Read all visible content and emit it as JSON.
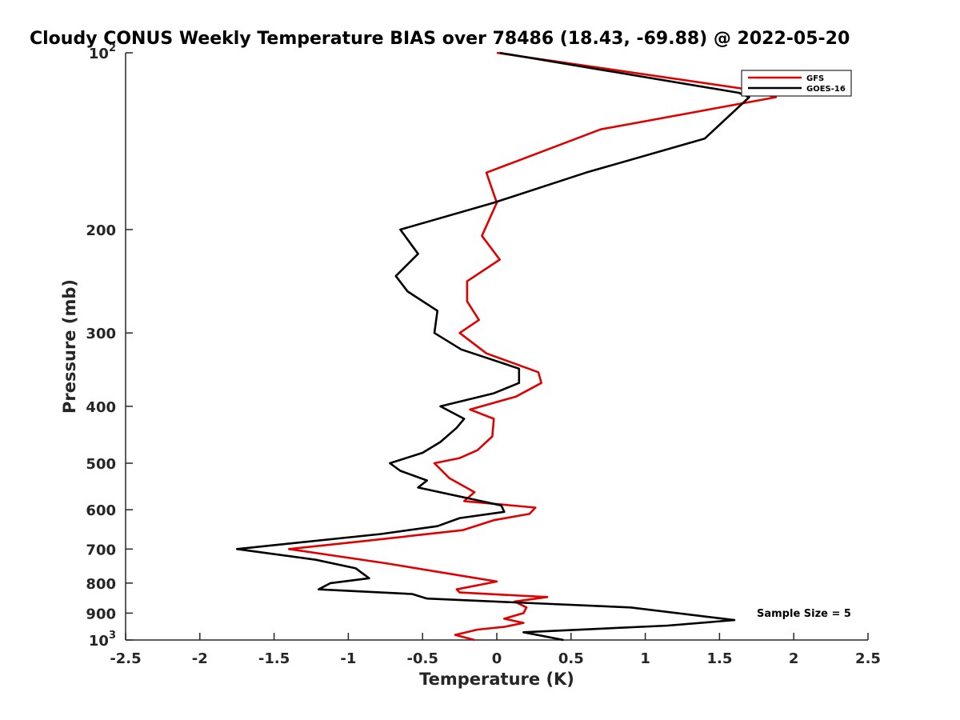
{
  "chart_data": {
    "type": "line",
    "title": "Cloudy CONUS Weekly Temperature BIAS over 78486 (18.43, -69.88) @ 2022-05-20",
    "xlabel": "Temperature (K)",
    "ylabel": "Pressure (mb)",
    "xlim": [
      -2.5,
      2.5
    ],
    "ylim": [
      100,
      1000
    ],
    "yscale": "log",
    "y_reversed": true,
    "x_ticks": [
      "-2.5",
      "-2",
      "-1.5",
      "-1",
      "-0.5",
      "0",
      "0.5",
      "1",
      "1.5",
      "2",
      "2.5"
    ],
    "x_tick_values": [
      -2.5,
      -2,
      -1.5,
      -1,
      -0.5,
      0,
      0.5,
      1,
      1.5,
      2,
      2.5
    ],
    "y_ticks": [
      {
        "value": 100,
        "base": "10",
        "exp": "2"
      },
      {
        "value": 200,
        "label": "200"
      },
      {
        "value": 300,
        "label": "300"
      },
      {
        "value": 400,
        "label": "400"
      },
      {
        "value": 500,
        "label": "500"
      },
      {
        "value": 600,
        "label": "600"
      },
      {
        "value": 700,
        "label": "700"
      },
      {
        "value": 800,
        "label": "800"
      },
      {
        "value": 900,
        "label": "900"
      },
      {
        "value": 1000,
        "base": "10",
        "exp": "3"
      }
    ],
    "grid": false,
    "legend_position": "top-right",
    "annotation": "Sample Size = 5",
    "series": [
      {
        "name": "GFS",
        "color": "#e00000",
        "points": [
          [
            0,
            100
          ],
          [
            1.65,
            115
          ],
          [
            1.88,
            119
          ],
          [
            0.7,
            135
          ],
          [
            -0.07,
            160
          ],
          [
            0,
            180
          ],
          [
            -0.1,
            205
          ],
          [
            0.02,
            225
          ],
          [
            -0.2,
            245
          ],
          [
            -0.2,
            265
          ],
          [
            -0.12,
            285
          ],
          [
            -0.25,
            300
          ],
          [
            -0.07,
            325
          ],
          [
            0.28,
            350
          ],
          [
            0.3,
            365
          ],
          [
            0.13,
            385
          ],
          [
            -0.18,
            405
          ],
          [
            -0.02,
            420
          ],
          [
            -0.03,
            450
          ],
          [
            -0.13,
            475
          ],
          [
            -0.25,
            490
          ],
          [
            -0.42,
            500
          ],
          [
            -0.32,
            530
          ],
          [
            -0.15,
            560
          ],
          [
            -0.22,
            580
          ],
          [
            0.26,
            595
          ],
          [
            0.22,
            610
          ],
          [
            -0.02,
            625
          ],
          [
            -0.23,
            650
          ],
          [
            -0.93,
            680
          ],
          [
            -1.4,
            700
          ],
          [
            -0.75,
            740
          ],
          [
            -0.2,
            780
          ],
          [
            0,
            795
          ],
          [
            -0.27,
            820
          ],
          [
            -0.25,
            830
          ],
          [
            0.34,
            845
          ],
          [
            0.12,
            860
          ],
          [
            0.2,
            880
          ],
          [
            0.18,
            900
          ],
          [
            0.05,
            920
          ],
          [
            0.18,
            935
          ],
          [
            0.05,
            950
          ],
          [
            -0.13,
            960
          ],
          [
            -0.28,
            980
          ],
          [
            -0.15,
            1000
          ]
        ]
      },
      {
        "name": "GOES-16",
        "color": "#000000",
        "points": [
          [
            0.02,
            100
          ],
          [
            1.63,
            117
          ],
          [
            1.7,
            119
          ],
          [
            1.4,
            140
          ],
          [
            0.6,
            160
          ],
          [
            -0.02,
            180
          ],
          [
            -0.65,
            200
          ],
          [
            -0.53,
            220
          ],
          [
            -0.68,
            240
          ],
          [
            -0.6,
            255
          ],
          [
            -0.4,
            275
          ],
          [
            -0.42,
            300
          ],
          [
            -0.24,
            320
          ],
          [
            0.15,
            345
          ],
          [
            0.15,
            365
          ],
          [
            -0.02,
            380
          ],
          [
            -0.38,
            400
          ],
          [
            -0.22,
            420
          ],
          [
            -0.27,
            435
          ],
          [
            -0.38,
            460
          ],
          [
            -0.5,
            480
          ],
          [
            -0.72,
            500
          ],
          [
            -0.65,
            515
          ],
          [
            -0.47,
            535
          ],
          [
            -0.53,
            550
          ],
          [
            0.03,
            590
          ],
          [
            0.05,
            605
          ],
          [
            -0.25,
            620
          ],
          [
            -0.4,
            640
          ],
          [
            -0.78,
            660
          ],
          [
            -1.75,
            700
          ],
          [
            -1.22,
            730
          ],
          [
            -0.95,
            755
          ],
          [
            -0.86,
            785
          ],
          [
            -1.12,
            800
          ],
          [
            -1.2,
            820
          ],
          [
            -0.57,
            835
          ],
          [
            -0.47,
            850
          ],
          [
            0.9,
            880
          ],
          [
            1.6,
            925
          ],
          [
            1.15,
            945
          ],
          [
            0.18,
            970
          ],
          [
            0.45,
            1000
          ]
        ]
      }
    ]
  }
}
